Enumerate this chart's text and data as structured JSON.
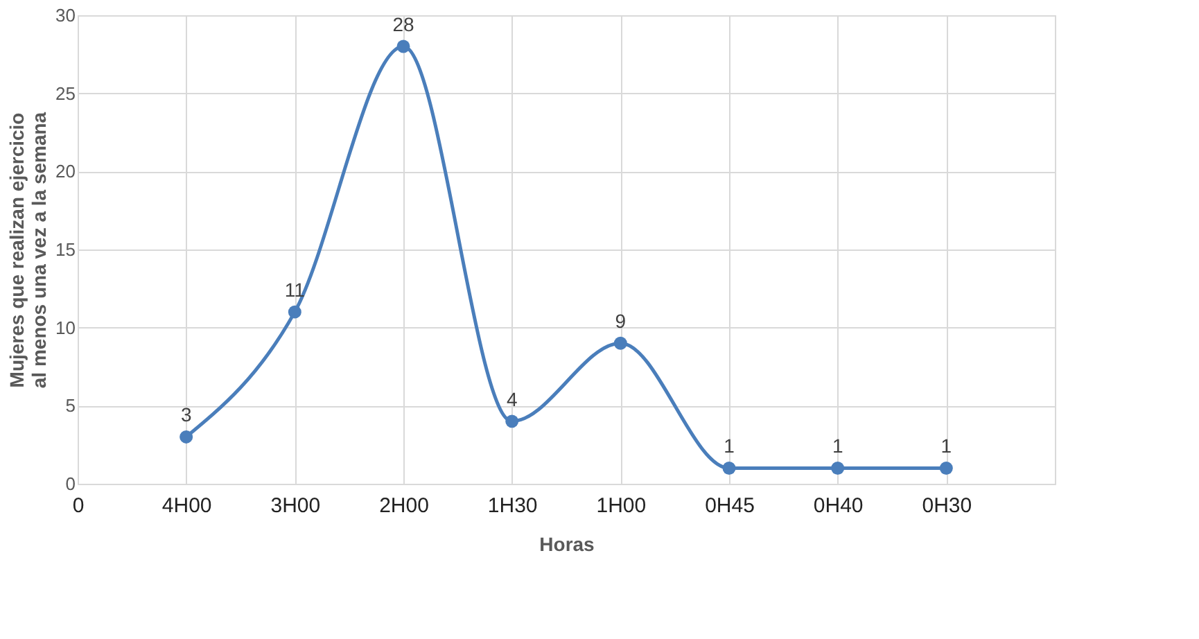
{
  "chart_data": {
    "type": "line",
    "xlabel": "Horas",
    "ylabel": "Mujeres que realizan ejercicio al menos una vez a la semana",
    "categories": [
      "0",
      "4H00",
      "3H00",
      "2H00",
      "1H30",
      "1H00",
      "0H45",
      "0H40",
      "0H30",
      null
    ],
    "series": [
      {
        "color": "#4a7ebb",
        "values": [
          null,
          3,
          11,
          28,
          4,
          9,
          1,
          1,
          1,
          null
        ]
      }
    ],
    "ylim": [
      0,
      30
    ],
    "yticks": [
      0,
      5,
      10,
      15,
      20,
      25,
      30
    ],
    "grid": true,
    "marker": "circle",
    "line_style": "solid",
    "data_labels": true
  }
}
